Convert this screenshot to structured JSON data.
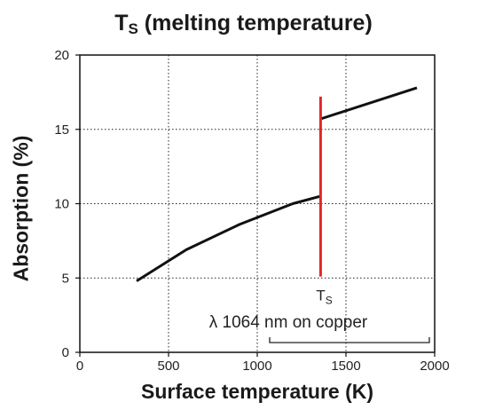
{
  "chart_data": {
    "type": "line",
    "title": "T",
    "title_subscript": "S",
    "title_rest": " (melting temperature)",
    "xlabel": "Surface temperature (K)",
    "ylabel": "Absorption (%)",
    "xlim": [
      0,
      2000
    ],
    "ylim": [
      0,
      20
    ],
    "xticks": [
      0,
      500,
      1000,
      1500,
      2000
    ],
    "yticks": [
      0,
      5,
      10,
      15,
      20
    ],
    "grid": true,
    "series": [
      {
        "segments": [
          [
            [
              320,
              4.8
            ],
            [
              600,
              6.9
            ],
            [
              900,
              8.6
            ],
            [
              1200,
              10.0
            ],
            [
              1357,
              10.5
            ]
          ],
          [
            [
              1357,
              15.7
            ],
            [
              1900,
              17.8
            ]
          ]
        ],
        "color": "#111111"
      }
    ],
    "marker_line": {
      "x": 1357,
      "y_range": [
        5.1,
        17.2
      ],
      "color": "#e3262b",
      "label": "T",
      "label_subscript": "S"
    },
    "annotation": {
      "text": "λ 1064 nm on copper",
      "bracket_x": [
        1070,
        1970
      ]
    }
  }
}
